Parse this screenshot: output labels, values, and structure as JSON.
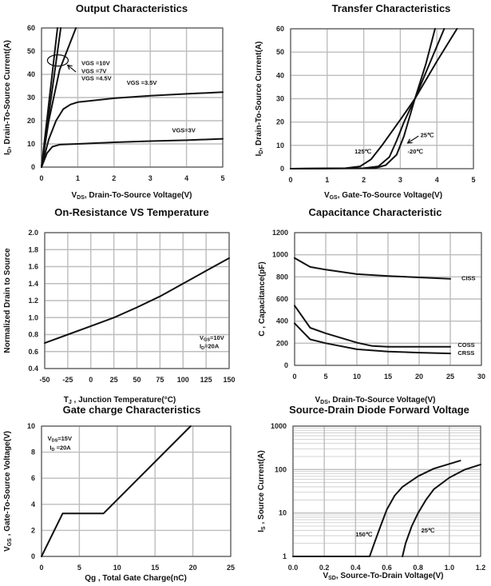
{
  "chart_data": [
    {
      "type": "line",
      "title": "Output Characteristics",
      "xlabel": {
        "pre": "V",
        "sub": "DS",
        "post": ", Drain-To-Source Voltage(V)"
      },
      "ylabel": {
        "pre": "I",
        "sub": "D",
        "post": ", Drain-To-Source Current(A)"
      },
      "xlim": [
        0,
        5
      ],
      "xticks": [
        0,
        1,
        2,
        3,
        4,
        5
      ],
      "ylim": [
        0,
        60
      ],
      "yticks": [
        0,
        10,
        20,
        30,
        40,
        50,
        60
      ],
      "grid": true,
      "series": [
        {
          "name": "VGS =10V",
          "points": [
            [
              0,
              0
            ],
            [
              0.44,
              60
            ]
          ]
        },
        {
          "name": "VGS =7V",
          "points": [
            [
              0,
              0
            ],
            [
              0.53,
              60
            ]
          ]
        },
        {
          "name": "VGS =4.5V",
          "points": [
            [
              0,
              0
            ],
            [
              0.2,
              20
            ],
            [
              0.5,
              42
            ],
            [
              0.95,
              60
            ]
          ]
        },
        {
          "name": "VGS =3.5V",
          "points": [
            [
              0,
              0
            ],
            [
              0.2,
              12
            ],
            [
              0.4,
              20
            ],
            [
              0.6,
              25
            ],
            [
              0.8,
              27
            ],
            [
              1,
              28
            ],
            [
              2,
              29.7
            ],
            [
              3,
              30.8
            ],
            [
              4,
              31.6
            ],
            [
              5,
              32.3
            ]
          ]
        },
        {
          "name": "VGS=3V",
          "points": [
            [
              0,
              0
            ],
            [
              0.15,
              6
            ],
            [
              0.3,
              8.8
            ],
            [
              0.5,
              9.7
            ],
            [
              1,
              10
            ],
            [
              2,
              10.7
            ],
            [
              3,
              11.2
            ],
            [
              4,
              11.6
            ],
            [
              5,
              12.2
            ]
          ]
        }
      ],
      "annotations": [
        {
          "parts": [
            "VGS =10V"
          ],
          "x": 1.1,
          "y": 44
        },
        {
          "parts": [
            "VGS =7V"
          ],
          "x": 1.1,
          "y": 40.5
        },
        {
          "parts": [
            "VGS =4.5V"
          ],
          "x": 1.1,
          "y": 37.5
        },
        {
          "parts": [
            "VGS =3.5V"
          ],
          "x": 2.35,
          "y": 35.5
        },
        {
          "parts": [
            "VGS=3V"
          ],
          "x": 3.6,
          "y": 15
        }
      ],
      "ellipse": {
        "x": 0.45,
        "y": 46
      },
      "arrow": {
        "from": [
          0.95,
          41
        ],
        "to": [
          0.72,
          44
        ]
      }
    },
    {
      "type": "line",
      "title": "Transfer Characteristics",
      "xlabel": {
        "pre": "V",
        "sub": "GS",
        "post": ", Gate-To-Source Voltage(V)"
      },
      "ylabel": {
        "pre": "I",
        "sub": "D",
        "post": ", Drain-To-Source Current(A)"
      },
      "xlim": [
        0,
        5
      ],
      "xticks": [
        0,
        1,
        2,
        3,
        4,
        5
      ],
      "ylim": [
        0,
        60
      ],
      "yticks": [
        0,
        10,
        20,
        30,
        40,
        50,
        60
      ],
      "grid": true,
      "series": [
        {
          "name": "125℃",
          "points": [
            [
              0,
              0
            ],
            [
              1.5,
              0.2
            ],
            [
              1.9,
              1
            ],
            [
              2.2,
              4
            ],
            [
              2.5,
              10
            ],
            [
              3,
              21
            ],
            [
              3.4,
              30
            ],
            [
              4,
              46
            ],
            [
              4.55,
              60
            ]
          ]
        },
        {
          "name": "25℃",
          "points": [
            [
              0,
              0
            ],
            [
              2,
              0.2
            ],
            [
              2.4,
              1
            ],
            [
              2.7,
              5
            ],
            [
              2.9,
              12
            ],
            [
              3.1,
              20
            ],
            [
              3.4,
              30
            ],
            [
              3.8,
              45
            ],
            [
              4.2,
              60
            ]
          ]
        },
        {
          "name": "-20℃",
          "points": [
            [
              0,
              0
            ],
            [
              2.3,
              0.2
            ],
            [
              2.6,
              1.5
            ],
            [
              2.9,
              6
            ],
            [
              3.1,
              14
            ],
            [
              3.4,
              30
            ],
            [
              3.7,
              45
            ],
            [
              3.95,
              60
            ]
          ]
        }
      ],
      "annotations": [
        {
          "parts": [
            "125℃"
          ],
          "x": 1.75,
          "y": 6.5
        },
        {
          "parts": [
            "25℃"
          ],
          "x": 3.55,
          "y": 13.5
        },
        {
          "parts": [
            "-20℃"
          ],
          "x": 3.2,
          "y": 6.5
        }
      ],
      "arrow": {
        "from": [
          3.5,
          14
        ],
        "to": [
          3.2,
          11
        ]
      }
    },
    {
      "type": "line",
      "title": "On-Resistance VS Temperature",
      "xlabel": {
        "pre": "T",
        "sub": "J",
        "post": " , Junction Temperature(°C)"
      },
      "ylabel": {
        "pre": "Normalized Drain to Source",
        "sub": "",
        "post": ""
      },
      "xlim": [
        -50,
        150
      ],
      "xticks": [
        -50,
        -25,
        0,
        25,
        50,
        75,
        100,
        125,
        150
      ],
      "ylim": [
        0.4,
        2.0
      ],
      "yticks": [
        0.4,
        0.6,
        0.8,
        1.0,
        1.2,
        1.4,
        1.6,
        1.8,
        2.0
      ],
      "ytick_decimals": 1,
      "grid": true,
      "series": [
        {
          "points": [
            [
              -50,
              0.7
            ],
            [
              -25,
              0.8
            ],
            [
              0,
              0.9
            ],
            [
              25,
              1.0
            ],
            [
              50,
              1.12
            ],
            [
              75,
              1.25
            ],
            [
              100,
              1.4
            ],
            [
              125,
              1.55
            ],
            [
              150,
              1.7
            ]
          ]
        }
      ],
      "annotations": [
        {
          "parts": [
            "V",
            "GS",
            "=10V"
          ],
          "x": 118,
          "y": 0.74
        },
        {
          "parts": [
            "I",
            "D",
            "=20A"
          ],
          "x": 118,
          "y": 0.64
        }
      ]
    },
    {
      "type": "line",
      "title": "Capacitance Characteristic",
      "xlabel": {
        "pre": "V",
        "sub": "DS",
        "post": ", Drain-To-Source Voltage(V)"
      },
      "ylabel": {
        "pre": "C , Capacitance(pF)",
        "sub": "",
        "post": ""
      },
      "xlim": [
        0,
        30
      ],
      "xticks": [
        0,
        5,
        10,
        15,
        20,
        25,
        30
      ],
      "ylim": [
        0,
        1200
      ],
      "yticks": [
        0,
        200,
        400,
        600,
        800,
        1000,
        1200
      ],
      "grid": true,
      "series": [
        {
          "name": "CISS",
          "points": [
            [
              0,
              970
            ],
            [
              2.5,
              890
            ],
            [
              5,
              865
            ],
            [
              10,
              825
            ],
            [
              15,
              808
            ],
            [
              20,
              795
            ],
            [
              25,
              782
            ]
          ]
        },
        {
          "name": "COSS",
          "points": [
            [
              0,
              540
            ],
            [
              2.5,
              340
            ],
            [
              5,
              290
            ],
            [
              10,
              205
            ],
            [
              12.5,
              175
            ],
            [
              15,
              168
            ],
            [
              25,
              168
            ]
          ]
        },
        {
          "name": "CRSS",
          "points": [
            [
              0,
              380
            ],
            [
              2.5,
              235
            ],
            [
              5,
              200
            ],
            [
              10,
              145
            ],
            [
              15,
              125
            ],
            [
              20,
              115
            ],
            [
              25,
              108
            ]
          ]
        }
      ],
      "annotations": [
        {
          "parts": [
            "CISS"
          ],
          "x": 26.8,
          "y": 770
        },
        {
          "parts": [
            "COSS"
          ],
          "x": 26.2,
          "y": 165
        },
        {
          "parts": [
            "CRSS"
          ],
          "x": 26.2,
          "y": 95
        }
      ]
    },
    {
      "type": "line",
      "title": "Gate charge Characteristics",
      "xlabel": {
        "pre": "Qg , Total Gate Charge(nC)",
        "sub": "",
        "post": ""
      },
      "ylabel": {
        "pre": "V",
        "sub": "GS",
        "post": " , Gate-To-Source Voltage(V)"
      },
      "xlim": [
        0,
        25
      ],
      "xticks": [
        0,
        5,
        10,
        15,
        20,
        25
      ],
      "ylim": [
        0,
        10
      ],
      "yticks": [
        0,
        2,
        4,
        6,
        8,
        10
      ],
      "grid": true,
      "series": [
        {
          "points": [
            [
              0,
              0
            ],
            [
              2.8,
              3.3
            ],
            [
              8.2,
              3.3
            ],
            [
              19.7,
              10
            ]
          ]
        }
      ],
      "annotations": [
        {
          "parts": [
            "V",
            "DS",
            "=15V"
          ],
          "x": 0.8,
          "y": 8.9
        },
        {
          "parts": [
            "I",
            "D",
            " =20A"
          ],
          "x": 1.1,
          "y": 8.2
        }
      ]
    },
    {
      "type": "line",
      "title": "Source-Drain Diode Forward Voltage",
      "xlabel": {
        "pre": "V",
        "sub": "SD",
        "post": ", Source-To-Drain Voltage(V)"
      },
      "ylabel": {
        "pre": "I",
        "sub": "S",
        "post": " , Source Current(A)"
      },
      "xlim": [
        0,
        1.2
      ],
      "xticks": [
        0.0,
        0.2,
        0.4,
        0.6,
        0.8,
        1.0,
        1.2
      ],
      "xtick_decimals": 1,
      "ylim": [
        1,
        1000
      ],
      "yticks": [
        1,
        10,
        100,
        1000
      ],
      "yscale": "log",
      "grid": true,
      "series": [
        {
          "name": "150℃",
          "points": [
            [
              0,
              1
            ],
            [
              0.49,
              1
            ],
            [
              0.52,
              2
            ],
            [
              0.56,
              5
            ],
            [
              0.6,
              12
            ],
            [
              0.65,
              25
            ],
            [
              0.7,
              40
            ],
            [
              0.8,
              70
            ],
            [
              0.9,
              105
            ],
            [
              1.0,
              135
            ],
            [
              1.07,
              160
            ]
          ]
        },
        {
          "name": "25℃",
          "points": [
            [
              0.7,
              1
            ],
            [
              0.72,
              2
            ],
            [
              0.76,
              5
            ],
            [
              0.8,
              10
            ],
            [
              0.85,
              20
            ],
            [
              0.9,
              35
            ],
            [
              1.0,
              65
            ],
            [
              1.1,
              100
            ],
            [
              1.2,
              130
            ]
          ]
        }
      ],
      "annotations": [
        {
          "parts": [
            "150℃"
          ],
          "x": 0.4,
          "y": 2.9
        },
        {
          "parts": [
            "25℃"
          ],
          "x": 0.82,
          "y": 3.6
        }
      ]
    }
  ]
}
